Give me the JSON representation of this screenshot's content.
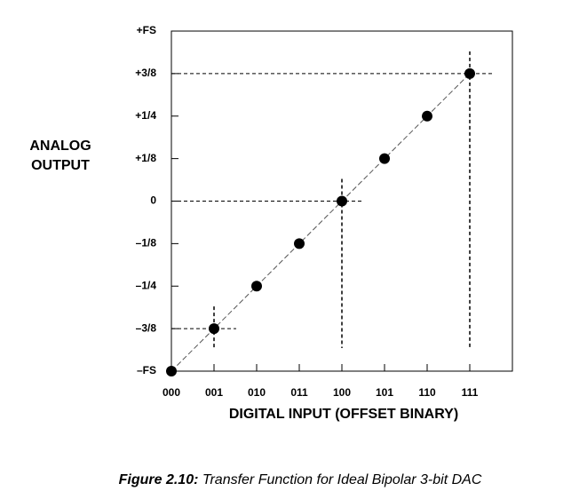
{
  "chart_data": {
    "type": "line",
    "ylabel": [
      "ANALOG",
      "OUTPUT"
    ],
    "xlabel": "DIGITAL INPUT (OFFSET BINARY)",
    "categories": [
      "000",
      "001",
      "010",
      "011",
      "100",
      "101",
      "110",
      "111"
    ],
    "values": [
      -0.5,
      -0.375,
      -0.25,
      -0.125,
      0,
      0.125,
      0.25,
      0.375
    ],
    "color": "#000000",
    "ylim": [
      -0.5,
      0.5
    ],
    "yticks": [
      {
        "value": -0.5,
        "label": "–FS"
      },
      {
        "value": -0.375,
        "label": "–3/8"
      },
      {
        "value": -0.25,
        "label": "–1/4"
      },
      {
        "value": -0.125,
        "label": "–1/8"
      },
      0,
      {
        "value": 0.125,
        "label": "+1/8"
      },
      {
        "value": 0.25,
        "label": "+1/4"
      },
      {
        "value": 0.375,
        "label": "+3/8"
      },
      {
        "value": 0.5,
        "label": "+FS"
      }
    ],
    "guide_points": [
      "001",
      "100",
      "111"
    ],
    "caption": {
      "label": "Figure 2.10:",
      "text": "Transfer Function for Ideal Bipolar 3-bit DAC"
    }
  }
}
